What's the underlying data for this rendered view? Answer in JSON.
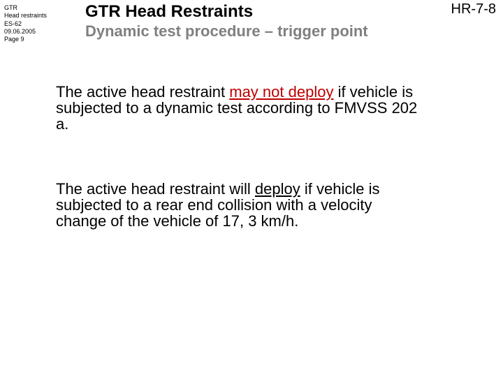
{
  "meta": {
    "line1": "GTR",
    "line2": "Head restraints",
    "line3": "ES-62",
    "line4": "09.06.2005",
    "line5": "Page 9"
  },
  "docId": "HR-7-8",
  "title": "GTR Head Restraints",
  "subtitle": "Dynamic test procedure – trigger point",
  "para1": {
    "t1": "The active head restraint ",
    "emph": "may not deploy",
    "t2": " if vehicle is subjected to a dynamic test according to FMVSS 202 a."
  },
  "para2": {
    "t1": "The active head restraint will ",
    "emph": "deploy",
    "t2": " if vehicle is subjected to a rear end collision with a velocity change of the vehicle of 17, 3 km/h."
  }
}
